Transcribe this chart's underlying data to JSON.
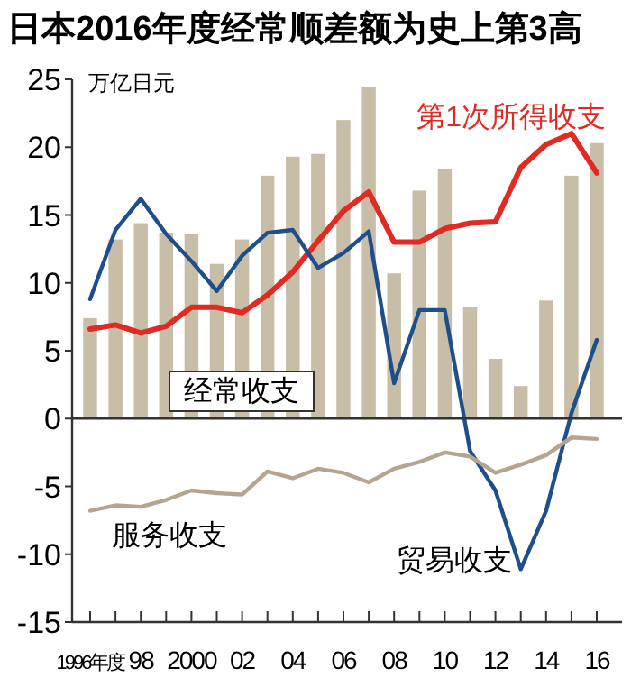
{
  "chart_data": {
    "type": "bar",
    "title": "日本2016年度经常顺差额为史上第3高",
    "ylabel": "万亿日元",
    "categories": [
      "1996年度",
      null,
      "98",
      null,
      "2000",
      null,
      "02",
      null,
      "04",
      null,
      "06",
      null,
      "08",
      null,
      "10",
      null,
      "12",
      null,
      "14",
      null,
      "16"
    ],
    "series": [
      {
        "name": "经常收支",
        "color": "#c8bea8",
        "values": [
          7.4,
          13.2,
          14.4,
          13.7,
          13.6,
          11.4,
          13.2,
          17.9,
          19.3,
          19.5,
          22.0,
          24.4,
          10.7,
          16.8,
          18.4,
          8.2,
          4.4,
          2.4,
          8.7,
          17.9,
          20.3
        ]
      },
      {
        "name": "第1次所得收支",
        "type": "line",
        "color": "#e02a22",
        "values": [
          6.6,
          6.9,
          6.3,
          6.8,
          8.2,
          8.2,
          7.8,
          9.1,
          10.8,
          13.1,
          15.3,
          16.7,
          13.0,
          13.0,
          14.0,
          14.4,
          14.5,
          18.5,
          20.2,
          21.0,
          18.1
        ]
      },
      {
        "name": "贸易收支",
        "type": "line",
        "color": "#1d4f8a",
        "values": [
          8.8,
          13.9,
          16.2,
          13.6,
          11.6,
          9.4,
          12.0,
          13.7,
          13.9,
          11.1,
          12.2,
          13.8,
          2.6,
          8.0,
          8.0,
          -2.4,
          -5.3,
          -11.1,
          -6.8,
          0.4,
          5.8
        ]
      },
      {
        "name": "服务收支",
        "type": "line",
        "color": "#b5a58f",
        "values": [
          -6.8,
          -6.4,
          -6.5,
          -6.0,
          -5.3,
          -5.5,
          -5.6,
          -3.9,
          -4.4,
          -3.7,
          -4.0,
          -4.7,
          -3.7,
          -3.2,
          -2.5,
          -2.8,
          -4.0,
          -3.4,
          -2.7,
          -1.4,
          -1.5
        ]
      }
    ],
    "ylim": [
      -15,
      25
    ],
    "yticks": [
      -15,
      -10,
      -5,
      0,
      5,
      10,
      15,
      20,
      25
    ],
    "ref_lines": [
      {
        "axis": "y",
        "value": 0,
        "color": "#333333"
      }
    ],
    "grid": false,
    "legend": false,
    "marker": "none",
    "line_style": "solid"
  }
}
